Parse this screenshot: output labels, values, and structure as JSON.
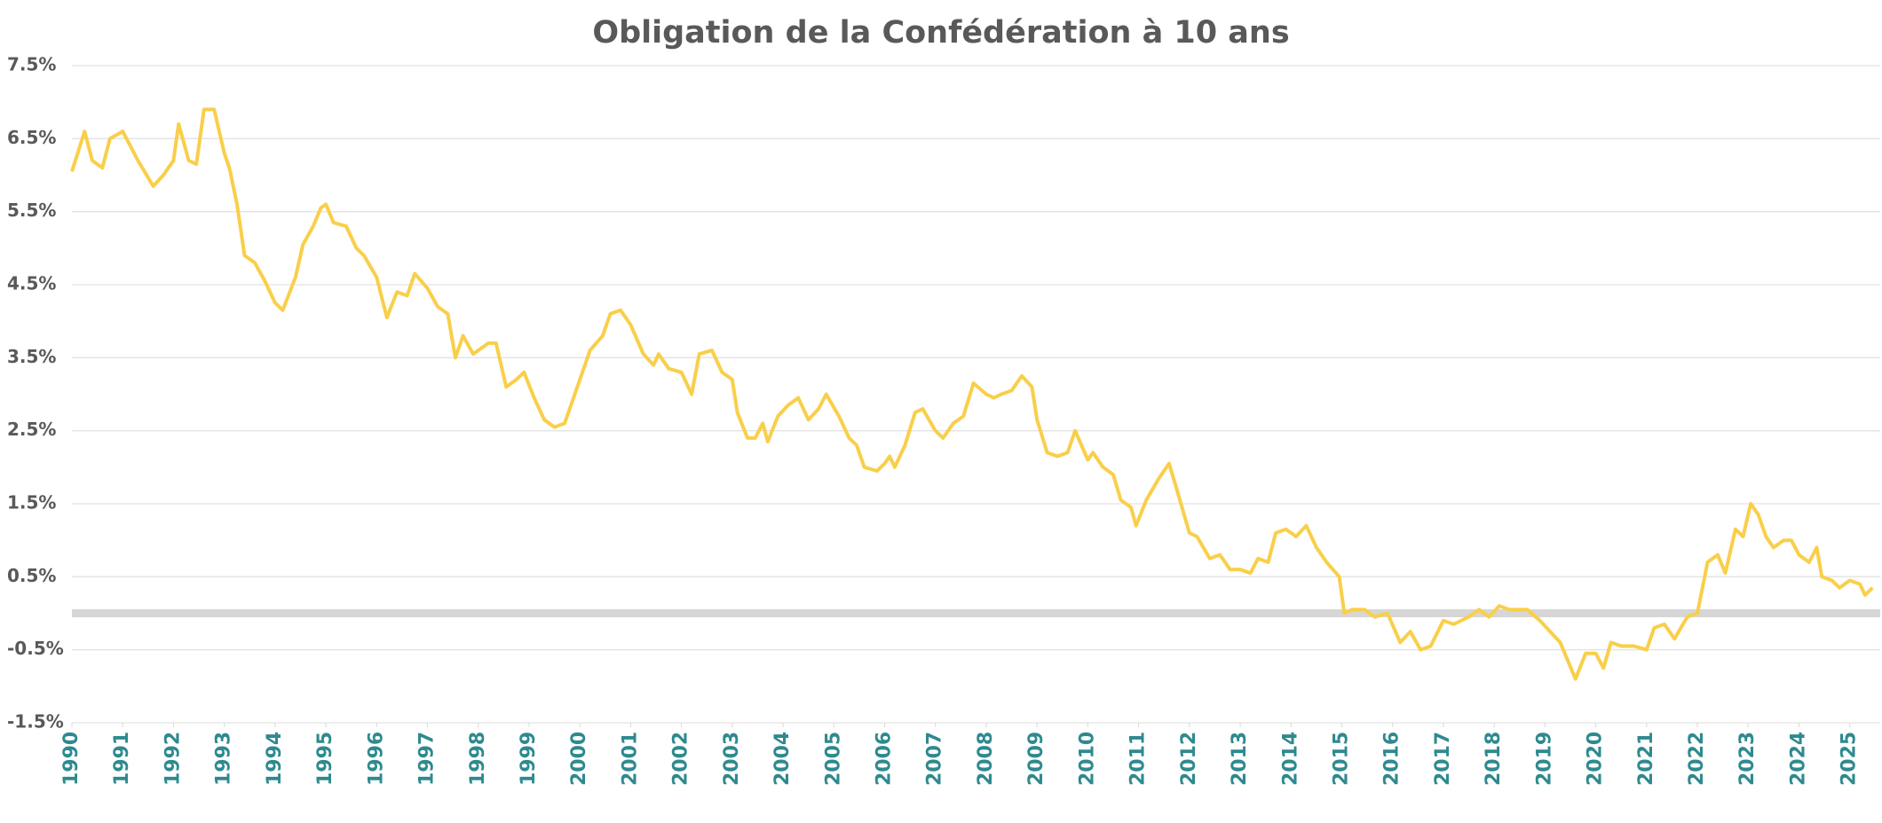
{
  "chart_data": {
    "type": "line",
    "title": "Obligation de la Confédération à 10 ans",
    "x": [
      1990.0,
      1990.25,
      1990.4,
      1990.6,
      1990.75,
      1991.0,
      1991.3,
      1991.6,
      1991.8,
      1992.0,
      1992.1,
      1992.3,
      1992.45,
      1992.6,
      1992.8,
      1993.0,
      1993.1,
      1993.25,
      1993.4,
      1993.6,
      1993.8,
      1994.0,
      1994.15,
      1994.4,
      1994.55,
      1994.75,
      1994.9,
      1995.0,
      1995.15,
      1995.4,
      1995.6,
      1995.75,
      1996.0,
      1996.2,
      1996.4,
      1996.6,
      1996.75,
      1997.0,
      1997.2,
      1997.4,
      1997.55,
      1997.7,
      1997.9,
      1998.2,
      1998.35,
      1998.55,
      1998.75,
      1998.9,
      1999.1,
      1999.3,
      1999.5,
      1999.7,
      1999.9,
      2000.2,
      2000.45,
      2000.6,
      2000.8,
      2001.0,
      2001.25,
      2001.45,
      2001.55,
      2001.75,
      2002.0,
      2002.2,
      2002.35,
      2002.6,
      2002.8,
      2003.0,
      2003.1,
      2003.3,
      2003.45,
      2003.6,
      2003.7,
      2003.9,
      2004.1,
      2004.3,
      2004.5,
      2004.7,
      2004.85,
      2005.1,
      2005.3,
      2005.45,
      2005.6,
      2005.85,
      2006.0,
      2006.1,
      2006.2,
      2006.4,
      2006.6,
      2006.75,
      2007.0,
      2007.15,
      2007.35,
      2007.55,
      2007.75,
      2008.0,
      2008.15,
      2008.3,
      2008.5,
      2008.7,
      2008.9,
      2009.0,
      2009.2,
      2009.4,
      2009.6,
      2009.75,
      2010.0,
      2010.1,
      2010.3,
      2010.5,
      2010.65,
      2010.85,
      2010.95,
      2011.15,
      2011.4,
      2011.6,
      2011.75,
      2012.0,
      2012.15,
      2012.4,
      2012.6,
      2012.8,
      2013.0,
      2013.2,
      2013.35,
      2013.55,
      2013.7,
      2013.9,
      2014.1,
      2014.3,
      2014.5,
      2014.7,
      2014.95,
      2015.05,
      2015.2,
      2015.45,
      2015.65,
      2015.9,
      2016.15,
      2016.35,
      2016.55,
      2016.75,
      2017.0,
      2017.2,
      2017.5,
      2017.7,
      2017.9,
      2018.1,
      2018.3,
      2018.5,
      2018.65,
      2018.9,
      2019.1,
      2019.3,
      2019.6,
      2019.8,
      2020.0,
      2020.15,
      2020.3,
      2020.5,
      2020.75,
      2021.0,
      2021.15,
      2021.35,
      2021.55,
      2021.8,
      2022.0,
      2022.2,
      2022.4,
      2022.55,
      2022.75,
      2022.9,
      2023.05,
      2023.2,
      2023.35,
      2023.5,
      2023.7,
      2023.85,
      2024.0,
      2024.2,
      2024.35,
      2024.45,
      2024.65,
      2024.8,
      2025.0,
      2025.2,
      2025.3,
      2025.45
    ],
    "values": [
      6.05,
      6.6,
      6.2,
      6.1,
      6.5,
      6.6,
      6.2,
      5.85,
      6.0,
      6.2,
      6.7,
      6.2,
      6.15,
      6.9,
      6.9,
      6.3,
      6.1,
      5.6,
      4.9,
      4.8,
      4.55,
      4.25,
      4.15,
      4.6,
      5.05,
      5.3,
      5.55,
      5.6,
      5.35,
      5.3,
      5.0,
      4.9,
      4.6,
      4.05,
      4.4,
      4.35,
      4.65,
      4.45,
      4.2,
      4.1,
      3.5,
      3.8,
      3.55,
      3.7,
      3.7,
      3.1,
      3.2,
      3.3,
      2.95,
      2.65,
      2.55,
      2.6,
      3.0,
      3.6,
      3.8,
      4.1,
      4.15,
      3.95,
      3.55,
      3.4,
      3.55,
      3.35,
      3.3,
      3.0,
      3.55,
      3.6,
      3.3,
      3.2,
      2.75,
      2.4,
      2.4,
      2.6,
      2.35,
      2.7,
      2.85,
      2.95,
      2.65,
      2.8,
      3.0,
      2.7,
      2.4,
      2.3,
      2.0,
      1.95,
      2.05,
      2.15,
      2.0,
      2.3,
      2.75,
      2.8,
      2.5,
      2.4,
      2.6,
      2.7,
      3.15,
      3.0,
      2.95,
      3.0,
      3.05,
      3.25,
      3.1,
      2.65,
      2.2,
      2.15,
      2.2,
      2.5,
      2.1,
      2.2,
      2.0,
      1.9,
      1.55,
      1.45,
      1.2,
      1.55,
      1.85,
      2.05,
      1.7,
      1.1,
      1.05,
      0.75,
      0.8,
      0.6,
      0.6,
      0.55,
      0.75,
      0.7,
      1.1,
      1.15,
      1.05,
      1.2,
      0.9,
      0.7,
      0.5,
      0.0,
      0.05,
      0.05,
      -0.05,
      0.0,
      -0.4,
      -0.25,
      -0.5,
      -0.45,
      -0.1,
      -0.15,
      -0.05,
      0.05,
      -0.05,
      0.1,
      0.05,
      0.05,
      0.05,
      -0.1,
      -0.25,
      -0.4,
      -0.9,
      -0.55,
      -0.55,
      -0.75,
      -0.4,
      -0.45,
      -0.45,
      -0.5,
      -0.2,
      -0.15,
      -0.35,
      -0.05,
      0.0,
      0.7,
      0.8,
      0.55,
      1.15,
      1.05,
      1.5,
      1.35,
      1.05,
      0.9,
      1.0,
      1.0,
      0.8,
      0.7,
      0.9,
      0.5,
      0.45,
      0.35,
      0.45,
      0.4,
      0.25,
      0.35
    ],
    "color": "#f9cf4a",
    "xlim": [
      1990,
      2025.6
    ],
    "xticks": [
      1990,
      1991,
      1992,
      1993,
      1994,
      1995,
      1996,
      1997,
      1998,
      1999,
      2000,
      2001,
      2002,
      2003,
      2004,
      2005,
      2006,
      2007,
      2008,
      2009,
      2010,
      2011,
      2012,
      2013,
      2014,
      2015,
      2016,
      2017,
      2018,
      2019,
      2020,
      2021,
      2022,
      2023,
      2024,
      2025
    ],
    "ylim": [
      -1.5,
      7.5
    ],
    "yticks": [
      {
        "value": -1.5,
        "label": "-1.5%"
      },
      {
        "value": -0.5,
        "label": "-0.5%"
      },
      {
        "value": 0.5,
        "label": "0.5%"
      },
      {
        "value": 1.5,
        "label": "1.5%"
      },
      {
        "value": 2.5,
        "label": "2.5%"
      },
      {
        "value": 3.5,
        "label": "3.5%"
      },
      {
        "value": 4.5,
        "label": "4.5%"
      },
      {
        "value": 5.5,
        "label": "5.5%"
      },
      {
        "value": 6.5,
        "label": "6.5%"
      },
      {
        "value": 7.5,
        "label": "7.5%"
      }
    ],
    "grid": true
  }
}
